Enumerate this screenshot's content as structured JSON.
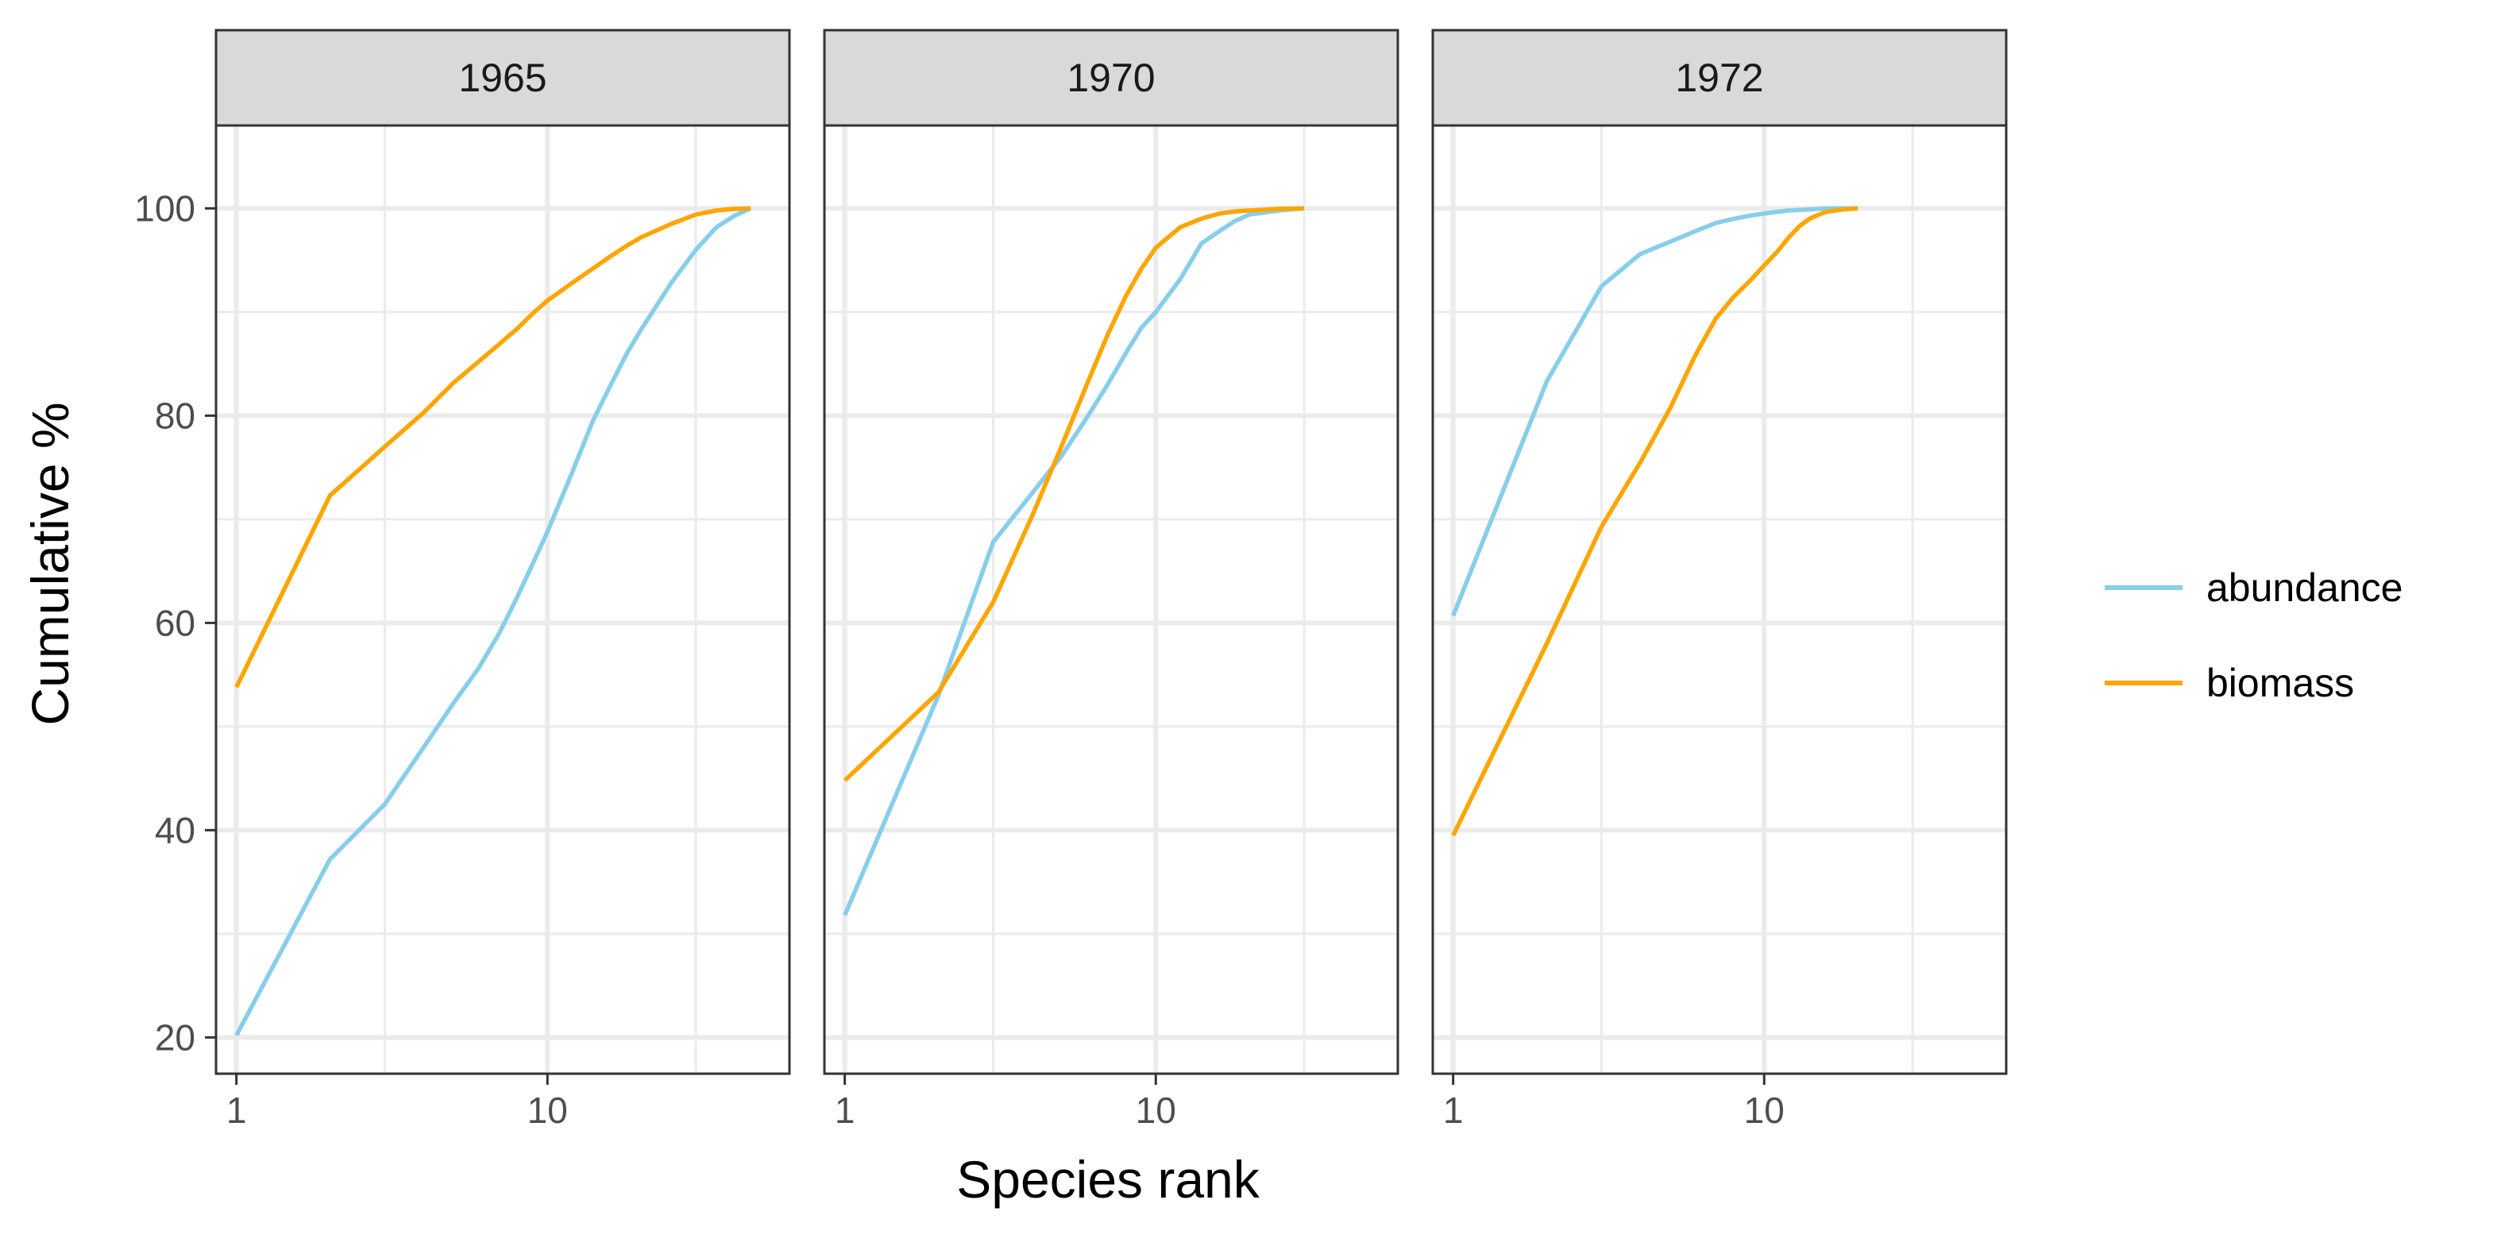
{
  "chart_data": {
    "type": "line",
    "facet_by": "year",
    "x_scale": "log10",
    "xlabel": "Species rank",
    "ylabel": "Cumulative %",
    "xlim": [
      0.86,
      60
    ],
    "ylim": [
      16.5,
      108
    ],
    "x_ticks": [
      1,
      10
    ],
    "x_tick_labels": [
      "1",
      "10"
    ],
    "y_ticks": [
      20,
      40,
      60,
      80,
      100
    ],
    "y_tick_labels": [
      "20",
      "40",
      "60",
      "80",
      "100"
    ],
    "grid": true,
    "legend_position": "right",
    "series_colors": {
      "abundance": "#87CEEB",
      "biomass": "#FFA500"
    },
    "legend": [
      {
        "name": "abundance",
        "color": "#87CEEB"
      },
      {
        "name": "biomass",
        "color": "#FFA500"
      }
    ],
    "panels": [
      {
        "label": "1965",
        "series": [
          {
            "name": "abundance",
            "x": [
              1,
              2,
              3,
              4,
              5,
              6,
              7,
              8,
              9,
              10,
              12,
              14,
              16,
              18,
              20,
              25,
              30,
              35,
              40,
              45
            ],
            "y": [
              20.2,
              37.2,
              42.5,
              48.0,
              52.3,
              55.6,
              59.0,
              62.5,
              65.8,
              68.8,
              74.5,
              79.5,
              83.0,
              86.0,
              88.3,
              92.8,
              96.0,
              98.2,
              99.3,
              100
            ]
          },
          {
            "name": "biomass",
            "x": [
              1,
              2,
              3,
              4,
              5,
              6,
              7,
              8,
              9,
              10,
              12,
              14,
              16,
              18,
              20,
              25,
              30,
              35,
              40,
              45
            ],
            "y": [
              53.8,
              72.3,
              77.0,
              80.3,
              83.2,
              85.2,
              86.9,
              88.4,
              89.9,
              91.1,
              92.8,
              94.2,
              95.4,
              96.4,
              97.2,
              98.5,
              99.4,
              99.8,
              99.95,
              100
            ]
          }
        ]
      },
      {
        "label": "1970",
        "series": [
          {
            "name": "abundance",
            "x": [
              1,
              2,
              3,
              4,
              5,
              6,
              7,
              8,
              9,
              10,
              12,
              14,
              16,
              18,
              20,
              25,
              30
            ],
            "y": [
              31.8,
              53.0,
              67.8,
              72.5,
              76.2,
              79.8,
              83.0,
              86.0,
              88.5,
              90.0,
              93.2,
              96.6,
              97.8,
              98.8,
              99.4,
              99.8,
              100
            ]
          },
          {
            "name": "biomass",
            "x": [
              1,
              2,
              3,
              4,
              5,
              6,
              7,
              8,
              9,
              10,
              12,
              14,
              16,
              18,
              20,
              25,
              30
            ],
            "y": [
              44.8,
              53.3,
              62.0,
              70.3,
              77.2,
              83.0,
              87.8,
              91.5,
              94.2,
              96.2,
              98.2,
              99.0,
              99.5,
              99.7,
              99.8,
              99.95,
              100
            ]
          }
        ]
      },
      {
        "label": "1972",
        "series": [
          {
            "name": "abundance",
            "x": [
              1,
              2,
              3,
              4,
              5,
              6,
              7,
              8,
              9,
              10,
              12,
              14,
              16,
              18,
              20
            ],
            "y": [
              60.7,
              83.3,
              92.5,
              95.6,
              96.8,
              97.8,
              98.6,
              99.0,
              99.3,
              99.5,
              99.8,
              99.9,
              100,
              100,
              100
            ]
          },
          {
            "name": "biomass",
            "x": [
              1,
              2,
              3,
              4,
              5,
              6,
              7,
              8,
              9,
              10,
              11,
              12,
              13,
              14,
              15,
              16,
              18,
              20
            ],
            "y": [
              39.5,
              58.0,
              69.3,
              75.5,
              80.8,
              85.8,
              89.4,
              91.5,
              93.0,
              94.5,
              95.8,
              97.2,
              98.3,
              99.0,
              99.4,
              99.7,
              99.9,
              100
            ]
          }
        ]
      }
    ]
  }
}
